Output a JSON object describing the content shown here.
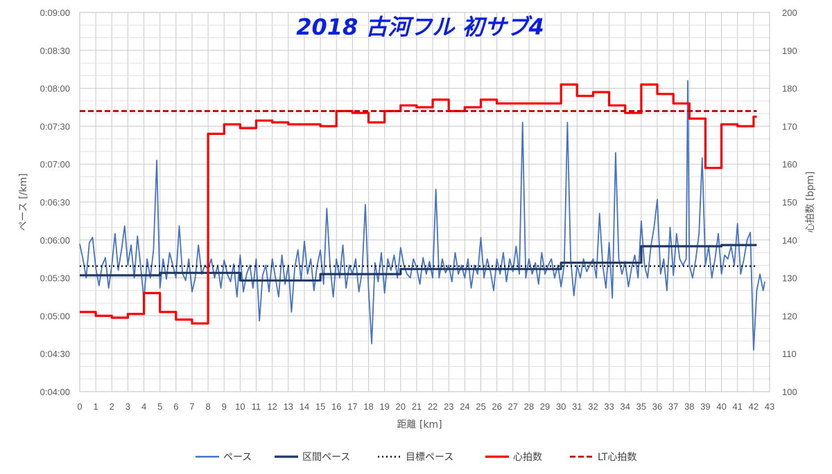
{
  "chart_data": {
    "type": "line",
    "title": "2018 古河フル 初サブ4",
    "xlabel": "距離 [km]",
    "ylabel": "ペース [/km]",
    "ylabel_right": "心拍数 [bpm]",
    "xlim": [
      0,
      43
    ],
    "x_ticks": [
      "0",
      "1",
      "2",
      "3",
      "4",
      "5",
      "6",
      "7",
      "8",
      "9",
      "10",
      "11",
      "12",
      "13",
      "14",
      "15",
      "16",
      "17",
      "18",
      "19",
      "20",
      "21",
      "22",
      "23",
      "24",
      "25",
      "26",
      "27",
      "28",
      "29",
      "30",
      "31",
      "32",
      "33",
      "34",
      "35",
      "36",
      "37",
      "38",
      "39",
      "40",
      "41",
      "42",
      "43"
    ],
    "ylim_left_seconds": [
      240,
      540
    ],
    "y_left_ticks": [
      "0:04:00",
      "0:04:30",
      "0:05:00",
      "0:05:30",
      "0:06:00",
      "0:06:30",
      "0:07:00",
      "0:07:30",
      "0:08:00",
      "0:08:30",
      "0:09:00"
    ],
    "ylim_right": [
      100,
      200
    ],
    "y_right_ticks": [
      "100",
      "110",
      "120",
      "130",
      "140",
      "150",
      "160",
      "170",
      "180",
      "190",
      "200"
    ],
    "grid": true,
    "legend_position": "bottom",
    "series": [
      {
        "name": "ペース",
        "axis": "left",
        "unit": "seconds per km",
        "color": "#4472c4",
        "points": [
          [
            0,
            357
          ],
          [
            0.2,
            345
          ],
          [
            0.4,
            330
          ],
          [
            0.6,
            358
          ],
          [
            0.8,
            362
          ],
          [
            1.0,
            338
          ],
          [
            1.2,
            324
          ],
          [
            1.4,
            340
          ],
          [
            1.6,
            346
          ],
          [
            1.8,
            322
          ],
          [
            2.0,
            340
          ],
          [
            2.2,
            365
          ],
          [
            2.4,
            336
          ],
          [
            2.6,
            352
          ],
          [
            2.8,
            371
          ],
          [
            3.0,
            340
          ],
          [
            3.2,
            356
          ],
          [
            3.4,
            330
          ],
          [
            3.6,
            363
          ],
          [
            3.8,
            339
          ],
          [
            4.0,
            312
          ],
          [
            4.2,
            345
          ],
          [
            4.4,
            330
          ],
          [
            4.6,
            352
          ],
          [
            4.8,
            423
          ],
          [
            5.0,
            322
          ],
          [
            5.2,
            345
          ],
          [
            5.4,
            329
          ],
          [
            5.6,
            350
          ],
          [
            5.8,
            340
          ],
          [
            6.0,
            330
          ],
          [
            6.2,
            371
          ],
          [
            6.4,
            334
          ],
          [
            6.6,
            328
          ],
          [
            6.8,
            345
          ],
          [
            7.0,
            319
          ],
          [
            7.2,
            330
          ],
          [
            7.4,
            356
          ],
          [
            7.6,
            333
          ],
          [
            7.8,
            340
          ],
          [
            8.0,
            337
          ],
          [
            8.2,
            345
          ],
          [
            8.4,
            330
          ],
          [
            8.6,
            340
          ],
          [
            8.8,
            322
          ],
          [
            9.0,
            344
          ],
          [
            9.2,
            333
          ],
          [
            9.4,
            327
          ],
          [
            9.6,
            341
          ],
          [
            9.8,
            315
          ],
          [
            10.0,
            348
          ],
          [
            10.2,
            319
          ],
          [
            10.4,
            333
          ],
          [
            10.6,
            340
          ],
          [
            10.8,
            322
          ],
          [
            11.0,
            345
          ],
          [
            11.2,
            296
          ],
          [
            11.4,
            332
          ],
          [
            11.6,
            340
          ],
          [
            11.8,
            319
          ],
          [
            12.0,
            345
          ],
          [
            12.2,
            330
          ],
          [
            12.4,
            315
          ],
          [
            12.6,
            348
          ],
          [
            12.8,
            325
          ],
          [
            13.0,
            340
          ],
          [
            13.2,
            303
          ],
          [
            13.4,
            338
          ],
          [
            13.6,
            352
          ],
          [
            13.8,
            328
          ],
          [
            14.0,
            359
          ],
          [
            14.2,
            333
          ],
          [
            14.4,
            345
          ],
          [
            14.6,
            320
          ],
          [
            14.8,
            340
          ],
          [
            15.0,
            352
          ],
          [
            15.2,
            325
          ],
          [
            15.4,
            385
          ],
          [
            15.6,
            340
          ],
          [
            15.8,
            315
          ],
          [
            16.0,
            345
          ],
          [
            16.2,
            330
          ],
          [
            16.4,
            356
          ],
          [
            16.6,
            322
          ],
          [
            16.8,
            340
          ],
          [
            17.0,
            333
          ],
          [
            17.2,
            345
          ],
          [
            17.4,
            319
          ],
          [
            17.6,
            335
          ],
          [
            17.8,
            388
          ],
          [
            18.0,
            322
          ],
          [
            18.2,
            278
          ],
          [
            18.4,
            342
          ],
          [
            18.6,
            327
          ],
          [
            18.8,
            350
          ],
          [
            19.0,
            318
          ],
          [
            19.2,
            345
          ],
          [
            19.4,
            336
          ],
          [
            19.6,
            348
          ],
          [
            19.8,
            330
          ],
          [
            20.0,
            354
          ],
          [
            20.2,
            340
          ],
          [
            20.4,
            333
          ],
          [
            20.6,
            330
          ],
          [
            20.8,
            345
          ],
          [
            21.0,
            338
          ],
          [
            21.2,
            325
          ],
          [
            21.4,
            346
          ],
          [
            21.6,
            333
          ],
          [
            21.8,
            343
          ],
          [
            22.0,
            330
          ],
          [
            22.2,
            400
          ],
          [
            22.4,
            330
          ],
          [
            22.6,
            345
          ],
          [
            22.8,
            334
          ],
          [
            23.0,
            340
          ],
          [
            23.2,
            327
          ],
          [
            23.4,
            350
          ],
          [
            23.6,
            333
          ],
          [
            23.8,
            340
          ],
          [
            24.0,
            330
          ],
          [
            24.2,
            345
          ],
          [
            24.4,
            322
          ],
          [
            24.6,
            340
          ],
          [
            24.8,
            333
          ],
          [
            25.0,
            362
          ],
          [
            25.2,
            330
          ],
          [
            25.4,
            345
          ],
          [
            25.6,
            335
          ],
          [
            25.8,
            320
          ],
          [
            26.0,
            345
          ],
          [
            26.2,
            333
          ],
          [
            26.4,
            350
          ],
          [
            26.6,
            327
          ],
          [
            26.8,
            345
          ],
          [
            27.0,
            335
          ],
          [
            27.2,
            355
          ],
          [
            27.4,
            333
          ],
          [
            27.6,
            453
          ],
          [
            27.8,
            330
          ],
          [
            28.0,
            345
          ],
          [
            28.2,
            333
          ],
          [
            28.4,
            342
          ],
          [
            28.6,
            325
          ],
          [
            28.8,
            350
          ],
          [
            29.0,
            333
          ],
          [
            29.2,
            340
          ],
          [
            29.4,
            345
          ],
          [
            29.6,
            330
          ],
          [
            29.8,
            340
          ],
          [
            30.0,
            323
          ],
          [
            30.2,
            340
          ],
          [
            30.4,
            453
          ],
          [
            30.6,
            345
          ],
          [
            30.8,
            316
          ],
          [
            31.0,
            340
          ],
          [
            31.2,
            330
          ],
          [
            31.4,
            345
          ],
          [
            31.6,
            335
          ],
          [
            31.8,
            340
          ],
          [
            32.0,
            345
          ],
          [
            32.2,
            330
          ],
          [
            32.4,
            381
          ],
          [
            32.6,
            340
          ],
          [
            32.8,
            322
          ],
          [
            33.0,
            358
          ],
          [
            33.2,
            314
          ],
          [
            33.4,
            429
          ],
          [
            33.6,
            345
          ],
          [
            33.8,
            333
          ],
          [
            34.0,
            343
          ],
          [
            34.2,
            323
          ],
          [
            34.4,
            338
          ],
          [
            34.6,
            348
          ],
          [
            34.8,
            330
          ],
          [
            35.0,
            375
          ],
          [
            35.2,
            340
          ],
          [
            35.4,
            330
          ],
          [
            35.6,
            355
          ],
          [
            35.8,
            370
          ],
          [
            36.0,
            392
          ],
          [
            36.2,
            333
          ],
          [
            36.4,
            345
          ],
          [
            36.6,
            320
          ],
          [
            36.8,
            370
          ],
          [
            37.0,
            332
          ],
          [
            37.2,
            365
          ],
          [
            37.4,
            345
          ],
          [
            37.6,
            340
          ],
          [
            37.8,
            345
          ],
          [
            37.9,
            486
          ],
          [
            38.0,
            340
          ],
          [
            38.2,
            330
          ],
          [
            38.4,
            345
          ],
          [
            38.6,
            365
          ],
          [
            38.8,
            425
          ],
          [
            39.0,
            340
          ],
          [
            39.2,
            355
          ],
          [
            39.4,
            330
          ],
          [
            39.6,
            345
          ],
          [
            39.8,
            365
          ],
          [
            40.0,
            333
          ],
          [
            40.2,
            348
          ],
          [
            40.4,
            345
          ],
          [
            40.6,
            355
          ],
          [
            40.8,
            340
          ],
          [
            41.0,
            373
          ],
          [
            41.2,
            333
          ],
          [
            41.4,
            345
          ],
          [
            41.6,
            360
          ],
          [
            41.8,
            366
          ],
          [
            42.0,
            273
          ],
          [
            42.2,
            320
          ],
          [
            42.4,
            333
          ],
          [
            42.6,
            320
          ],
          [
            42.7,
            327
          ]
        ]
      },
      {
        "name": "区間ペース",
        "axis": "left",
        "unit": "seconds per km",
        "color": "#1f3864",
        "steps": [
          [
            0,
            5,
            332
          ],
          [
            5,
            10,
            334
          ],
          [
            10,
            15,
            328
          ],
          [
            15,
            20,
            333
          ],
          [
            20,
            30,
            337
          ],
          [
            30,
            35,
            342
          ],
          [
            35,
            40,
            355
          ],
          [
            40,
            42.195,
            356
          ]
        ]
      },
      {
        "name": "目標ペース",
        "axis": "left",
        "unit": "seconds per km",
        "color": "#000000",
        "constant": 339.3
      },
      {
        "name": "心拍数",
        "axis": "right",
        "unit": "bpm",
        "color": "#ff0000",
        "steps": [
          [
            0,
            1,
            121
          ],
          [
            1,
            2,
            120
          ],
          [
            2,
            3,
            119.5
          ],
          [
            3,
            4,
            120.5
          ],
          [
            4,
            5,
            126
          ],
          [
            5,
            6,
            121
          ],
          [
            6,
            7,
            119
          ],
          [
            7,
            8,
            118
          ],
          [
            8,
            9,
            168
          ],
          [
            9,
            10,
            170.5
          ],
          [
            10,
            11,
            169.5
          ],
          [
            11,
            12,
            171.5
          ],
          [
            12,
            13,
            171
          ],
          [
            13,
            14,
            170.5
          ],
          [
            14,
            15,
            170.5
          ],
          [
            15,
            16,
            170
          ],
          [
            16,
            17,
            174
          ],
          [
            17,
            18,
            173.5
          ],
          [
            18,
            19,
            171
          ],
          [
            19,
            20,
            174
          ],
          [
            20,
            21,
            175.5
          ],
          [
            21,
            22,
            175
          ],
          [
            22,
            23,
            177
          ],
          [
            23,
            24,
            174
          ],
          [
            24,
            25,
            175
          ],
          [
            25,
            26,
            177
          ],
          [
            26,
            27,
            176
          ],
          [
            27,
            28,
            176
          ],
          [
            28,
            29,
            176
          ],
          [
            29,
            30,
            176
          ],
          [
            30,
            31,
            181
          ],
          [
            31,
            32,
            178
          ],
          [
            32,
            33,
            179
          ],
          [
            33,
            34,
            175.5
          ],
          [
            34,
            35,
            173.5
          ],
          [
            35,
            36,
            181
          ],
          [
            36,
            37,
            178.5
          ],
          [
            37,
            38,
            176
          ],
          [
            38,
            39,
            172
          ],
          [
            39,
            40,
            159
          ],
          [
            40,
            41,
            170.5
          ],
          [
            41,
            42,
            170
          ],
          [
            42,
            42.2,
            172.5
          ]
        ]
      },
      {
        "name": "LT心拍数",
        "axis": "right",
        "unit": "bpm",
        "color": "#c00000",
        "constant": 174
      }
    ]
  }
}
